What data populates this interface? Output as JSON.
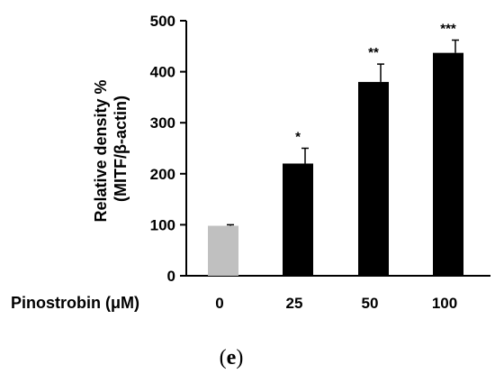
{
  "chart_data": {
    "type": "bar",
    "categories": [
      "0",
      "25",
      "50",
      "100"
    ],
    "values": [
      98,
      220,
      380,
      437
    ],
    "errors": [
      2,
      30,
      35,
      25
    ],
    "significance": [
      "",
      "*",
      "**",
      "***"
    ],
    "bar_colors": [
      "#c0c0c0",
      "#000000",
      "#000000",
      "#000000"
    ],
    "ylabel_line1": "Relative density %",
    "ylabel_line2": "(MITF/β-actin)",
    "xlabel": "Pinostrobin (μM)",
    "ylim": [
      0,
      500
    ],
    "yticks": [
      0,
      100,
      200,
      300,
      400,
      500
    ],
    "grid": false
  },
  "panel_label": {
    "open": "(",
    "letter": "e",
    "close": ")"
  }
}
